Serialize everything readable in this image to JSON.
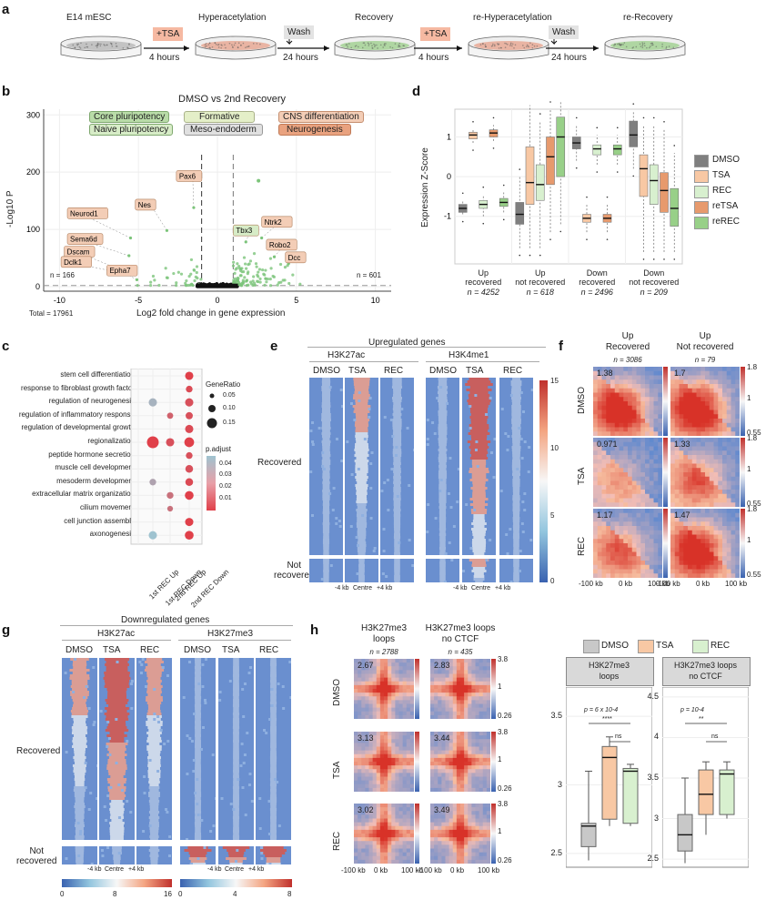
{
  "panel_letters": [
    "a",
    "b",
    "c",
    "d",
    "e",
    "f",
    "g",
    "h"
  ],
  "a": {
    "stages": [
      "E14 mESC",
      "Hyperacetylation",
      "Recovery",
      "re-Hyperacetylation",
      "re-Recovery"
    ],
    "tsa_label": "+TSA",
    "wash_label": "Wash",
    "times": [
      "4 hours",
      "24 hours",
      "4 hours",
      "24 hours"
    ],
    "dish_colors": [
      "#b8b8b8",
      "#e7a590",
      "#9fd08e",
      "#e7a590",
      "#9fd08e"
    ]
  },
  "b": {
    "title": "DMSO vs 2nd Recovery",
    "ylabel": "-Log10 P",
    "xlabel": "Log2 fold change in gene expression",
    "n_left": "n = 166",
    "n_right": "n = 601",
    "total": "Total = 17961",
    "legend": [
      {
        "label": "Core pluripotency",
        "color": "#b9dca8"
      },
      {
        "label": "Naive pluripotency",
        "color": "#d7ecc7"
      },
      {
        "label": "Formative",
        "color": "#e4efc8"
      },
      {
        "label": "Meso-endoderm",
        "color": "#e0e0e0"
      },
      {
        "label": "CNS differentiation",
        "color": "#f3cdb6"
      },
      {
        "label": "Neurogenesis",
        "color": "#e9a27f"
      }
    ],
    "genes": [
      "Pax6",
      "Nes",
      "Neurod1",
      "Sema6d",
      "Dscam",
      "Dclk1",
      "Epha7",
      "Tbx3",
      "Ntrk2",
      "Robo2",
      "Dcc"
    ],
    "chart_data": {
      "type": "scatter",
      "title": "DMSO vs 2nd Recovery",
      "xlabel": "Log2 fold change in gene expression",
      "ylabel": "-Log10 P",
      "xticks": [
        -10,
        -5,
        0,
        5,
        10
      ],
      "yticks": [
        0,
        100,
        200,
        300
      ],
      "xlim": [
        -11,
        11
      ],
      "ylim": [
        -8,
        310
      ],
      "labeled_points": [
        {
          "gene": "Pax6",
          "x": -1.5,
          "y": 138
        },
        {
          "gene": "Nes",
          "x": -3.2,
          "y": 98
        },
        {
          "gene": "Neurod1",
          "x": -5.5,
          "y": 85
        },
        {
          "gene": "Sema6d",
          "x": -5.6,
          "y": 54
        },
        {
          "gene": "Dscam",
          "x": -6.2,
          "y": 30
        },
        {
          "gene": "Dclk1",
          "x": -5.8,
          "y": 22
        },
        {
          "gene": "Epha7",
          "x": -5.1,
          "y": 12
        },
        {
          "gene": "Tbx3",
          "x": 1.8,
          "y": 78
        },
        {
          "gene": "Ntrk2",
          "x": 2.8,
          "y": 85
        },
        {
          "gene": "Robo2",
          "x": 3.6,
          "y": 52
        },
        {
          "gene": "Dcc",
          "x": 4.5,
          "y": 40
        }
      ]
    }
  },
  "c": {
    "terms": [
      "stem cell differentiation",
      "response to fibroblast growth factor",
      "regulation of neurogenesis",
      "regulation of inflammatory response",
      "regulation of developmental growth",
      "regionalization",
      "peptide hormone secretion",
      "muscle cell development",
      "mesoderm development",
      "extracellular matrix organization",
      "cilium movement",
      "cell junction assembly",
      "axonogenesis"
    ],
    "xcats": [
      "1st REC Up",
      "1st REC Down",
      "2nd REC Up",
      "2nd REC Down"
    ],
    "legend_gene_ratio_title": "GeneRatio",
    "legend_gene_ratio": [
      "0.05",
      "0.10",
      "0.15"
    ],
    "legend_padj_title": "p.adjust",
    "legend_padj": [
      "0.04",
      "0.03",
      "0.02",
      "0.01"
    ],
    "chart_data": {
      "type": "scatter",
      "points": [
        {
          "term": 0,
          "cat": 3,
          "ratio": 0.09,
          "padj": 0.005
        },
        {
          "term": 1,
          "cat": 3,
          "ratio": 0.06,
          "padj": 0.008
        },
        {
          "term": 2,
          "cat": 1,
          "ratio": 0.09,
          "padj": 0.04
        },
        {
          "term": 2,
          "cat": 3,
          "ratio": 0.09,
          "padj": 0.01
        },
        {
          "term": 3,
          "cat": 2,
          "ratio": 0.05,
          "padj": 0.015
        },
        {
          "term": 3,
          "cat": 3,
          "ratio": 0.07,
          "padj": 0.01
        },
        {
          "term": 4,
          "cat": 3,
          "ratio": 0.09,
          "padj": 0.008
        },
        {
          "term": 5,
          "cat": 1,
          "ratio": 0.16,
          "padj": 0.005
        },
        {
          "term": 5,
          "cat": 2,
          "ratio": 0.09,
          "padj": 0.01
        },
        {
          "term": 5,
          "cat": 3,
          "ratio": 0.12,
          "padj": 0.005
        },
        {
          "term": 6,
          "cat": 3,
          "ratio": 0.06,
          "padj": 0.01
        },
        {
          "term": 7,
          "cat": 3,
          "ratio": 0.08,
          "padj": 0.01
        },
        {
          "term": 8,
          "cat": 1,
          "ratio": 0.06,
          "padj": 0.035
        },
        {
          "term": 8,
          "cat": 3,
          "ratio": 0.08,
          "padj": 0.008
        },
        {
          "term": 9,
          "cat": 2,
          "ratio": 0.06,
          "padj": 0.02
        },
        {
          "term": 9,
          "cat": 3,
          "ratio": 0.1,
          "padj": 0.005
        },
        {
          "term": 10,
          "cat": 2,
          "ratio": 0.04,
          "padj": 0.02
        },
        {
          "term": 11,
          "cat": 3,
          "ratio": 0.09,
          "padj": 0.005
        },
        {
          "term": 12,
          "cat": 1,
          "ratio": 0.09,
          "padj": 0.045
        },
        {
          "term": 12,
          "cat": 3,
          "ratio": 0.1,
          "padj": 0.005
        }
      ]
    }
  },
  "d": {
    "ylabel": "Expression Z-Score",
    "yticks": [
      "1",
      "0",
      "-1"
    ],
    "groups": [
      {
        "label": "Up\nrecovered",
        "n": "n = 4252"
      },
      {
        "label": "Up\nnot recovered",
        "n": "n = 618"
      },
      {
        "label": "Down\nrecovered",
        "n": "n = 2496"
      },
      {
        "label": "Down\nnot recovered",
        "n": "n = 209"
      }
    ],
    "legend": [
      {
        "label": "DMSO",
        "color": "#7f7f7f"
      },
      {
        "label": "TSA",
        "color": "#f8c8a4"
      },
      {
        "label": "REC",
        "color": "#d8f0cf"
      },
      {
        "label": "reTSA",
        "color": "#e79a6d"
      },
      {
        "label": "reREC",
        "color": "#98d088"
      }
    ],
    "chart_data": {
      "type": "box",
      "ylim": [
        -2.2,
        1.7
      ],
      "series": [
        "DMSO",
        "TSA",
        "REC",
        "reTSA",
        "reREC"
      ],
      "boxes": [
        [
          [
            -0.95,
            -0.9,
            -0.8,
            -0.7,
            -0.6
          ],
          [
            0.85,
            0.95,
            1.05,
            1.12,
            1.2
          ],
          [
            -1.0,
            -0.8,
            -0.7,
            -0.6,
            -0.45
          ],
          [
            0.9,
            1.0,
            1.1,
            1.18,
            1.3
          ],
          [
            -0.9,
            -0.75,
            -0.65,
            -0.55,
            -0.4
          ]
        ],
        [
          [
            -1.8,
            -1.2,
            -0.95,
            -0.65,
            0.0
          ],
          [
            -1.8,
            -0.7,
            -0.15,
            0.75,
            1.8
          ],
          [
            -1.8,
            -0.6,
            -0.2,
            0.3,
            1.4
          ],
          [
            -1.4,
            -0.2,
            0.5,
            1.0,
            1.7
          ],
          [
            -1.2,
            0.0,
            1.0,
            1.5,
            1.9
          ]
        ],
        [
          [
            0.4,
            0.7,
            0.85,
            1.0,
            1.3
          ],
          [
            -1.4,
            -1.15,
            -1.05,
            -0.95,
            -0.7
          ],
          [
            0.3,
            0.55,
            0.7,
            0.8,
            1.05
          ],
          [
            -1.4,
            -1.15,
            -1.05,
            -0.95,
            -0.7
          ],
          [
            0.3,
            0.55,
            0.7,
            0.8,
            1.05
          ]
        ],
        [
          [
            0.2,
            0.75,
            1.05,
            1.4,
            1.65
          ],
          [
            -1.9,
            -0.5,
            0.2,
            0.55,
            1.3
          ],
          [
            -1.9,
            -0.7,
            -0.1,
            0.3,
            1.3
          ],
          [
            -1.9,
            -0.9,
            -0.35,
            0.1,
            1.2
          ],
          [
            -1.9,
            -1.25,
            -0.8,
            -0.3,
            0.6
          ]
        ]
      ]
    }
  },
  "e": {
    "title": "Upregulated genes",
    "marks": [
      "H3K27ac",
      "H3K4me1"
    ],
    "cols": [
      "DMSO",
      "TSA",
      "REC",
      "DMSO",
      "TSA",
      "REC"
    ],
    "row_labels": [
      "Recovered",
      "Not\nrecovered"
    ],
    "axis": [
      "-4 kb",
      "Centre",
      "+4 kb"
    ],
    "scale": [
      "15",
      "10",
      "5",
      "0"
    ]
  },
  "f": {
    "cols": [
      {
        "title": "Up\nRecovered",
        "n": "n = 3086"
      },
      {
        "title": "Up\nNot recovered",
        "n": "n = 79"
      }
    ],
    "rows": [
      "DMSO",
      "TSA",
      "REC"
    ],
    "values": [
      [
        "1.38",
        "1.7"
      ],
      [
        "0.971",
        "1.33"
      ],
      [
        "1.17",
        "1.47"
      ]
    ],
    "scale": [
      "1.8",
      "1",
      "0.55"
    ],
    "axis": [
      "-100 kb",
      "0 kb",
      "100 kb"
    ]
  },
  "g": {
    "title": "Downregulated genes",
    "marks": [
      "H3K27ac",
      "H3K27me3"
    ],
    "cols": [
      "DMSO",
      "TSA",
      "REC",
      "DMSO",
      "TSA",
      "REC"
    ],
    "row_labels": [
      "Recovered",
      "Not\nrecovered"
    ],
    "axis": [
      "-4 kb",
      "Centre",
      "+4 kb"
    ],
    "scale_left": [
      "0",
      "8",
      "16"
    ],
    "scale_right": [
      "0",
      "4",
      "8"
    ]
  },
  "h": {
    "cols": [
      {
        "title": "H3K27me3\nloops",
        "n": "n = 2788"
      },
      {
        "title": "H3K27me3 loops\nno CTCF",
        "n": "n = 435"
      }
    ],
    "rows": [
      "DMSO",
      "TSA",
      "REC"
    ],
    "values": [
      [
        "2.67",
        "2.83"
      ],
      [
        "3.13",
        "3.44"
      ],
      [
        "3.02",
        "3.49"
      ]
    ],
    "scale": [
      "3.8",
      "1",
      "0.26"
    ],
    "axis": [
      "-100 kb",
      "0 kb",
      "100 kb"
    ],
    "box_legend": [
      {
        "label": "DMSO",
        "color": "#c8c8c8"
      },
      {
        "label": "TSA",
        "color": "#f8c8a4"
      },
      {
        "label": "REC",
        "color": "#d8f0cf"
      }
    ],
    "box_panels": [
      {
        "title": "H3K27me3\nloops",
        "yticks": [
          "3.5",
          "3",
          "2.5"
        ],
        "pval": "p = 6 x 10-4",
        "sig1": "****",
        "sig2": "ns"
      },
      {
        "title": "H3K27me3 loops\nno CTCF",
        "yticks": [
          "4.5",
          "4",
          "3.5",
          "3",
          "2.5"
        ],
        "pval": "p = 10-4",
        "sig1": "**",
        "sig2": "ns"
      }
    ],
    "chart_data": {
      "type": "box",
      "panels": [
        {
          "ylim": [
            2.4,
            3.7
          ],
          "boxes": [
            [
              2.45,
              2.55,
              2.7,
              2.72,
              3.1
            ],
            [
              2.7,
              2.75,
              3.2,
              3.28,
              3.35
            ],
            [
              2.7,
              2.72,
              3.1,
              3.12,
              3.15
            ]
          ]
        },
        {
          "ylim": [
            2.4,
            4.6
          ],
          "boxes": [
            [
              2.45,
              2.6,
              2.8,
              3.05,
              3.5
            ],
            [
              2.8,
              3.05,
              3.3,
              3.6,
              3.7
            ],
            [
              3.0,
              3.05,
              3.55,
              3.6,
              3.7
            ]
          ]
        }
      ]
    }
  }
}
